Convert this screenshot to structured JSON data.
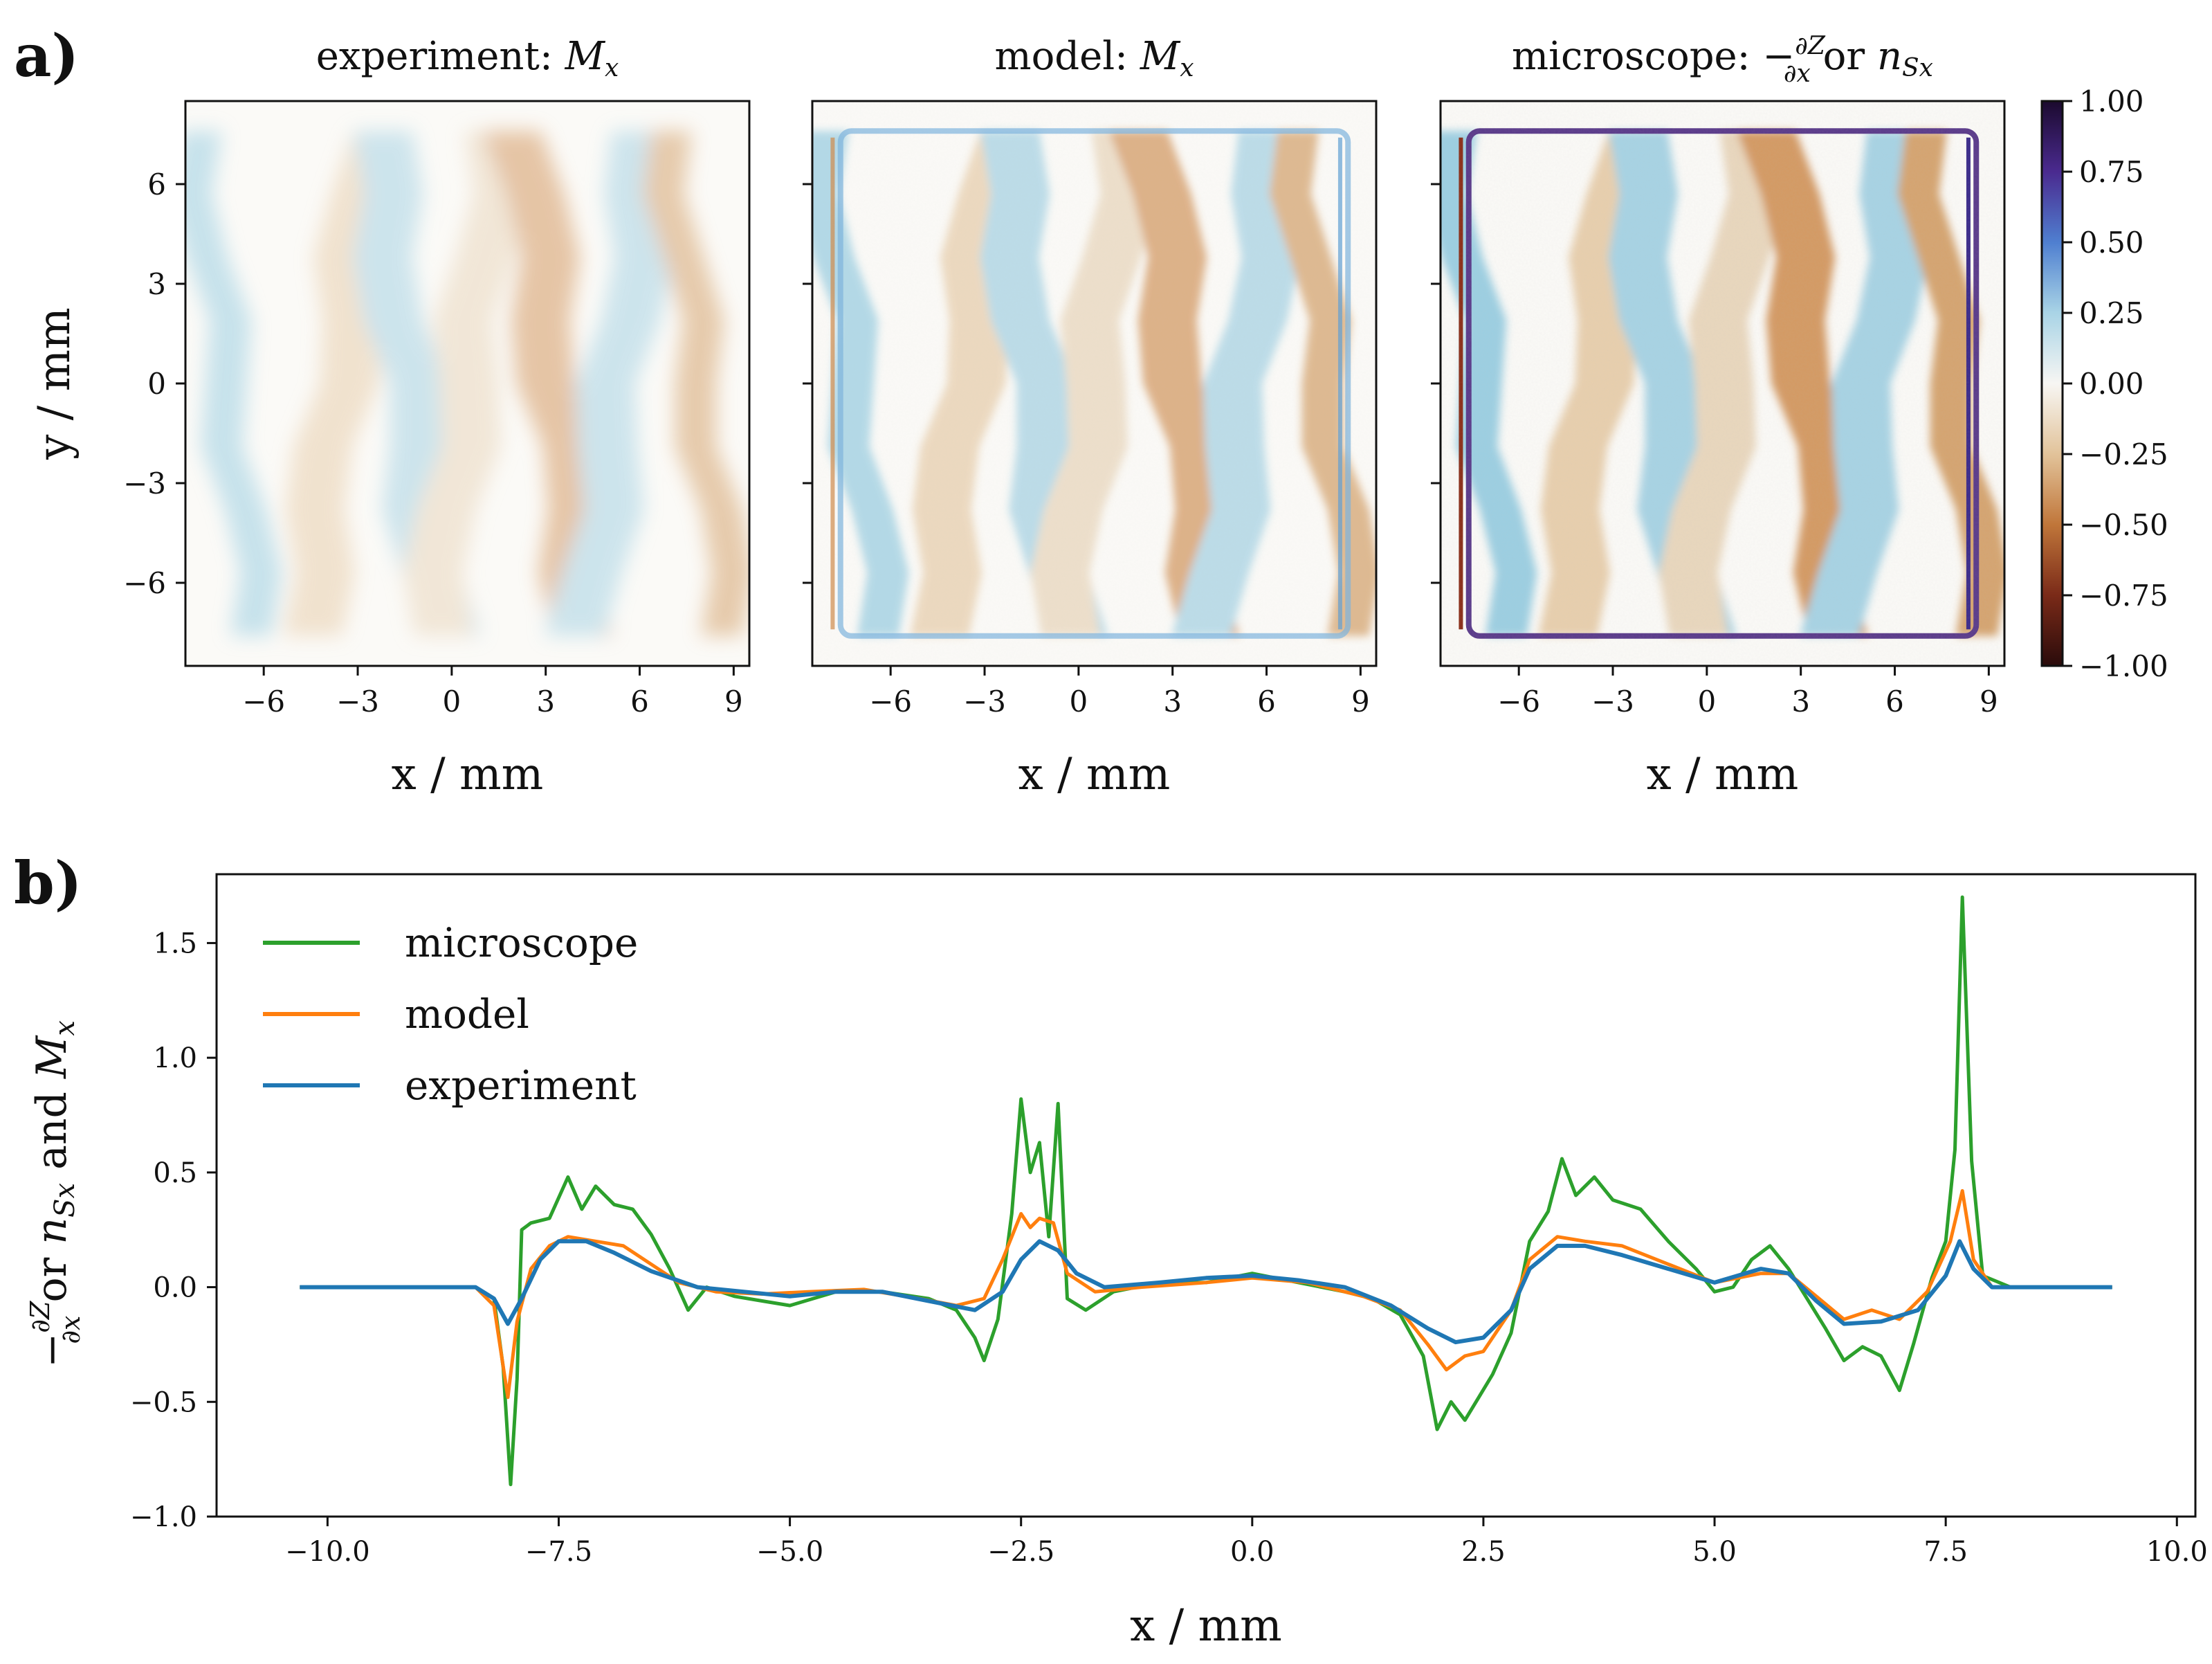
{
  "panel_labels": {
    "a": "a)",
    "b": "b)"
  },
  "heatmaps": [
    {
      "title_text": "experiment: ",
      "title_symbol": "M",
      "title_sub": "x",
      "xlabel": "x / mm"
    },
    {
      "title_text": "model: ",
      "title_symbol": "M",
      "title_sub": "x",
      "xlabel": "x / mm"
    },
    {
      "title_text": "microscope: −",
      "title_frac_num": "∂Z",
      "title_frac_den": "∂x",
      "title_tail": " or ",
      "title_symbol": "n",
      "title_sub": "Sx",
      "xlabel": "x / mm"
    }
  ],
  "heatmap_ylabel": "y / mm",
  "heatmap_xticks": [
    "−6",
    "−3",
    "0",
    "3",
    "6",
    "9"
  ],
  "heatmap_yticks": [
    "6",
    "3",
    "0",
    "−3",
    "−6"
  ],
  "colorbar": {
    "ticks": [
      "1.00",
      "0.75",
      "0.50",
      "0.25",
      "0.00",
      "−0.25",
      "−0.50",
      "−0.75",
      "−1.00"
    ],
    "colors": [
      "#1b0a2e",
      "#4a2a8f",
      "#4f7fd0",
      "#a9d4e6",
      "#f7f6f3",
      "#e2c39a",
      "#c0763a",
      "#7a2a18",
      "#2a0b0b"
    ]
  },
  "line_plot": {
    "xlabel": "x / mm",
    "ylabel_parts": [
      "−",
      "∂Z",
      "∂x",
      " or ",
      "n",
      "Sx",
      " and ",
      "M",
      "x"
    ],
    "xticks": [
      "−10.0",
      "−7.5",
      "−5.0",
      "−2.5",
      "0.0",
      "2.5",
      "5.0",
      "7.5",
      "10.0"
    ],
    "yticks": [
      "1.5",
      "1.0",
      "0.5",
      "0.0",
      "−0.5",
      "−1.0"
    ],
    "legend": [
      "microscope",
      "model",
      "experiment"
    ]
  },
  "chart_data": [
    {
      "type": "heatmap",
      "title": "experiment: Mx",
      "xlabel": "x / mm",
      "ylabel": "y / mm",
      "xlim": [
        -8.5,
        9.5
      ],
      "ylim": [
        -8.5,
        8.5
      ],
      "clim": [
        -1,
        1
      ]
    },
    {
      "type": "heatmap",
      "title": "model: Mx",
      "xlabel": "x / mm",
      "xlim": [
        -8.5,
        9.5
      ],
      "ylim": [
        -8.5,
        8.5
      ],
      "clim": [
        -1,
        1
      ]
    },
    {
      "type": "heatmap",
      "title": "microscope: −∂Z/∂x or nSx",
      "xlabel": "x / mm",
      "xlim": [
        -8.5,
        9.5
      ],
      "ylim": [
        -8.5,
        8.5
      ],
      "clim": [
        -1,
        1
      ]
    },
    {
      "type": "line",
      "xlabel": "x / mm",
      "ylabel": "−∂Z/∂x or nSx and Mx",
      "xlim": [
        -11.2,
        10.2
      ],
      "ylim": [
        -1.0,
        1.8
      ],
      "legend_position": "top-left",
      "series": [
        {
          "name": "microscope",
          "color": "#2ca02c",
          "points": [
            [
              -10.3,
              0.0
            ],
            [
              -9.5,
              0.0
            ],
            [
              -8.7,
              0.0
            ],
            [
              -8.4,
              0.0
            ],
            [
              -8.2,
              -0.05
            ],
            [
              -8.1,
              -0.35
            ],
            [
              -8.02,
              -0.86
            ],
            [
              -7.95,
              -0.4
            ],
            [
              -7.9,
              0.25
            ],
            [
              -7.8,
              0.28
            ],
            [
              -7.6,
              0.3
            ],
            [
              -7.4,
              0.48
            ],
            [
              -7.25,
              0.34
            ],
            [
              -7.1,
              0.44
            ],
            [
              -6.9,
              0.36
            ],
            [
              -6.7,
              0.34
            ],
            [
              -6.5,
              0.23
            ],
            [
              -6.3,
              0.08
            ],
            [
              -6.1,
              -0.1
            ],
            [
              -5.9,
              0.0
            ],
            [
              -5.6,
              -0.04
            ],
            [
              -5.3,
              -0.06
            ],
            [
              -5.0,
              -0.08
            ],
            [
              -4.5,
              -0.02
            ],
            [
              -4.0,
              -0.02
            ],
            [
              -3.5,
              -0.05
            ],
            [
              -3.2,
              -0.1
            ],
            [
              -3.0,
              -0.22
            ],
            [
              -2.9,
              -0.32
            ],
            [
              -2.75,
              -0.14
            ],
            [
              -2.6,
              0.32
            ],
            [
              -2.5,
              0.82
            ],
            [
              -2.4,
              0.5
            ],
            [
              -2.3,
              0.63
            ],
            [
              -2.2,
              0.22
            ],
            [
              -2.1,
              0.8
            ],
            [
              -2.0,
              -0.05
            ],
            [
              -1.8,
              -0.1
            ],
            [
              -1.5,
              -0.02
            ],
            [
              -1.0,
              0.02
            ],
            [
              -0.5,
              0.02
            ],
            [
              0.0,
              0.06
            ],
            [
              0.5,
              0.02
            ],
            [
              1.0,
              -0.02
            ],
            [
              1.3,
              -0.05
            ],
            [
              1.6,
              -0.12
            ],
            [
              1.85,
              -0.3
            ],
            [
              2.0,
              -0.62
            ],
            [
              2.15,
              -0.5
            ],
            [
              2.3,
              -0.58
            ],
            [
              2.45,
              -0.48
            ],
            [
              2.6,
              -0.38
            ],
            [
              2.8,
              -0.2
            ],
            [
              3.0,
              0.2
            ],
            [
              3.2,
              0.33
            ],
            [
              3.35,
              0.56
            ],
            [
              3.5,
              0.4
            ],
            [
              3.7,
              0.48
            ],
            [
              3.9,
              0.38
            ],
            [
              4.2,
              0.34
            ],
            [
              4.5,
              0.2
            ],
            [
              4.8,
              0.08
            ],
            [
              5.0,
              -0.02
            ],
            [
              5.2,
              0.0
            ],
            [
              5.4,
              0.12
            ],
            [
              5.6,
              0.18
            ],
            [
              5.8,
              0.08
            ],
            [
              6.0,
              -0.05
            ],
            [
              6.2,
              -0.18
            ],
            [
              6.4,
              -0.32
            ],
            [
              6.6,
              -0.26
            ],
            [
              6.8,
              -0.3
            ],
            [
              7.0,
              -0.45
            ],
            [
              7.15,
              -0.25
            ],
            [
              7.35,
              0.04
            ],
            [
              7.5,
              0.2
            ],
            [
              7.6,
              0.6
            ],
            [
              7.68,
              1.7
            ],
            [
              7.78,
              0.55
            ],
            [
              7.9,
              0.05
            ],
            [
              8.2,
              0.0
            ],
            [
              9.3,
              0.0
            ]
          ]
        },
        {
          "name": "model",
          "color": "#ff7f0e",
          "points": [
            [
              -10.3,
              0.0
            ],
            [
              -9.0,
              0.0
            ],
            [
              -8.4,
              0.0
            ],
            [
              -8.2,
              -0.08
            ],
            [
              -8.05,
              -0.48
            ],
            [
              -7.95,
              -0.15
            ],
            [
              -7.8,
              0.08
            ],
            [
              -7.6,
              0.18
            ],
            [
              -7.4,
              0.22
            ],
            [
              -7.1,
              0.2
            ],
            [
              -6.8,
              0.18
            ],
            [
              -6.5,
              0.1
            ],
            [
              -6.2,
              0.02
            ],
            [
              -5.8,
              -0.02
            ],
            [
              -5.3,
              -0.03
            ],
            [
              -4.8,
              -0.02
            ],
            [
              -4.2,
              -0.01
            ],
            [
              -3.6,
              -0.05
            ],
            [
              -3.2,
              -0.08
            ],
            [
              -2.9,
              -0.05
            ],
            [
              -2.7,
              0.12
            ],
            [
              -2.5,
              0.32
            ],
            [
              -2.4,
              0.26
            ],
            [
              -2.3,
              0.3
            ],
            [
              -2.15,
              0.28
            ],
            [
              -2.0,
              0.06
            ],
            [
              -1.7,
              -0.02
            ],
            [
              -1.2,
              0.0
            ],
            [
              -0.5,
              0.02
            ],
            [
              0.0,
              0.04
            ],
            [
              0.6,
              0.02
            ],
            [
              1.2,
              -0.04
            ],
            [
              1.6,
              -0.1
            ],
            [
              1.9,
              -0.25
            ],
            [
              2.1,
              -0.36
            ],
            [
              2.3,
              -0.3
            ],
            [
              2.5,
              -0.28
            ],
            [
              2.8,
              -0.1
            ],
            [
              3.0,
              0.12
            ],
            [
              3.3,
              0.22
            ],
            [
              3.6,
              0.2
            ],
            [
              4.0,
              0.18
            ],
            [
              4.5,
              0.1
            ],
            [
              5.0,
              0.02
            ],
            [
              5.5,
              0.06
            ],
            [
              5.8,
              0.06
            ],
            [
              6.1,
              -0.04
            ],
            [
              6.4,
              -0.14
            ],
            [
              6.7,
              -0.1
            ],
            [
              7.0,
              -0.14
            ],
            [
              7.3,
              -0.02
            ],
            [
              7.55,
              0.2
            ],
            [
              7.68,
              0.42
            ],
            [
              7.8,
              0.12
            ],
            [
              8.0,
              0.0
            ],
            [
              9.3,
              0.0
            ]
          ]
        },
        {
          "name": "experiment",
          "color": "#1f77b4",
          "points": [
            [
              -10.3,
              0.0
            ],
            [
              -9.0,
              0.0
            ],
            [
              -8.4,
              0.0
            ],
            [
              -8.2,
              -0.05
            ],
            [
              -8.05,
              -0.16
            ],
            [
              -7.9,
              -0.05
            ],
            [
              -7.7,
              0.12
            ],
            [
              -7.5,
              0.2
            ],
            [
              -7.2,
              0.2
            ],
            [
              -6.9,
              0.15
            ],
            [
              -6.5,
              0.07
            ],
            [
              -6.0,
              0.0
            ],
            [
              -5.5,
              -0.02
            ],
            [
              -5.0,
              -0.04
            ],
            [
              -4.5,
              -0.02
            ],
            [
              -4.0,
              -0.02
            ],
            [
              -3.5,
              -0.06
            ],
            [
              -3.0,
              -0.1
            ],
            [
              -2.7,
              -0.02
            ],
            [
              -2.5,
              0.12
            ],
            [
              -2.3,
              0.2
            ],
            [
              -2.1,
              0.16
            ],
            [
              -1.9,
              0.06
            ],
            [
              -1.6,
              0.0
            ],
            [
              -1.0,
              0.02
            ],
            [
              -0.5,
              0.04
            ],
            [
              0.0,
              0.05
            ],
            [
              0.5,
              0.03
            ],
            [
              1.0,
              0.0
            ],
            [
              1.5,
              -0.08
            ],
            [
              1.9,
              -0.18
            ],
            [
              2.2,
              -0.24
            ],
            [
              2.5,
              -0.22
            ],
            [
              2.8,
              -0.1
            ],
            [
              3.0,
              0.08
            ],
            [
              3.3,
              0.18
            ],
            [
              3.6,
              0.18
            ],
            [
              4.0,
              0.14
            ],
            [
              4.5,
              0.08
            ],
            [
              5.0,
              0.02
            ],
            [
              5.5,
              0.08
            ],
            [
              5.8,
              0.06
            ],
            [
              6.1,
              -0.06
            ],
            [
              6.4,
              -0.16
            ],
            [
              6.8,
              -0.15
            ],
            [
              7.2,
              -0.1
            ],
            [
              7.5,
              0.05
            ],
            [
              7.65,
              0.2
            ],
            [
              7.8,
              0.08
            ],
            [
              8.0,
              0.0
            ],
            [
              9.3,
              0.0
            ]
          ]
        }
      ]
    }
  ]
}
